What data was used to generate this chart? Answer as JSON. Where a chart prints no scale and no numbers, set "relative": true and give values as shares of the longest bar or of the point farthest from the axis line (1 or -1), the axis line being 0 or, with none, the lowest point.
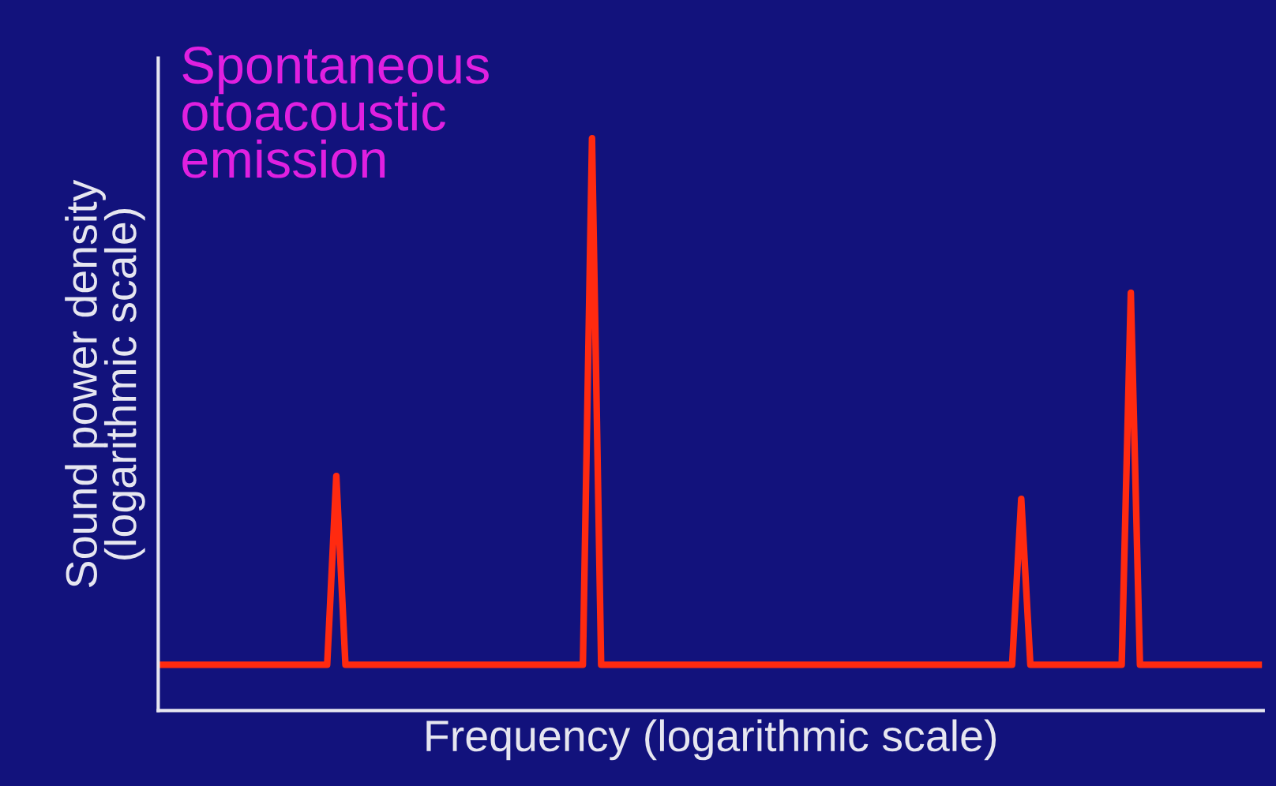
{
  "chart_data": {
    "type": "line",
    "title": "Spontaneous\notoacoustic\nemission",
    "xlabel": "Frequency (logarithmic scale)",
    "ylabel": "Sound power density\n(logarithmic scale)",
    "relative": true,
    "categories": [
      null,
      null,
      null,
      null,
      null,
      null,
      null,
      null,
      null,
      null,
      null,
      null,
      null,
      null,
      null,
      null,
      null,
      null,
      null,
      null,
      null,
      null,
      null,
      null,
      null,
      null,
      null,
      null,
      null,
      null,
      null,
      null,
      null,
      null,
      null,
      null,
      null,
      null,
      null,
      null,
      null,
      null,
      null,
      null,
      null,
      null,
      null,
      null,
      null,
      null,
      null,
      null,
      null,
      null,
      null,
      null,
      null,
      null,
      null,
      null,
      null,
      null,
      null,
      null,
      null,
      null,
      null,
      null,
      null,
      null,
      null,
      null,
      null,
      null,
      null,
      null,
      null,
      null,
      null,
      null,
      null,
      null,
      null,
      null,
      null,
      null,
      null,
      null,
      null,
      null,
      null,
      null,
      null,
      null,
      null,
      null,
      null,
      null,
      null,
      null,
      null,
      null,
      null,
      null,
      null,
      null,
      null,
      null,
      null,
      null,
      null,
      null,
      null,
      null,
      null,
      null,
      null,
      null,
      null,
      null,
      null
    ],
    "series": [
      {
        "color": "#ff2a10",
        "values": [
          0.08,
          0.08,
          0.08,
          0.08,
          0.08,
          0.08,
          0.08,
          0.08,
          0.08,
          0.08,
          0.08,
          0.08,
          0.08,
          0.08,
          0.08,
          0.08,
          0.08,
          0.08,
          0.08,
          0.41,
          0.08,
          0.08,
          0.08,
          0.08,
          0.08,
          0.08,
          0.08,
          0.08,
          0.08,
          0.08,
          0.08,
          0.08,
          0.08,
          0.08,
          0.08,
          0.08,
          0.08,
          0.08,
          0.08,
          0.08,
          0.08,
          0.08,
          0.08,
          0.08,
          0.08,
          0.08,
          0.08,
          1,
          0.08,
          0.08,
          0.08,
          0.08,
          0.08,
          0.08,
          0.08,
          0.08,
          0.08,
          0.08,
          0.08,
          0.08,
          0.08,
          0.08,
          0.08,
          0.08,
          0.08,
          0.08,
          0.08,
          0.08,
          0.08,
          0.08,
          0.08,
          0.08,
          0.08,
          0.08,
          0.08,
          0.08,
          0.08,
          0.08,
          0.08,
          0.08,
          0.08,
          0.08,
          0.08,
          0.08,
          0.08,
          0.08,
          0.08,
          0.08,
          0.08,
          0.08,
          0.08,
          0.08,
          0.08,
          0.08,
          0.37,
          0.08,
          0.08,
          0.08,
          0.08,
          0.08,
          0.08,
          0.08,
          0.08,
          0.08,
          0.08,
          0.08,
          0.73,
          0.08,
          0.08,
          0.08,
          0.08,
          0.08,
          0.08,
          0.08,
          0.08,
          0.08,
          0.08,
          0.08,
          0.08,
          0.08,
          0.08
        ]
      }
    ],
    "marker": "none",
    "line_style": "solid"
  }
}
